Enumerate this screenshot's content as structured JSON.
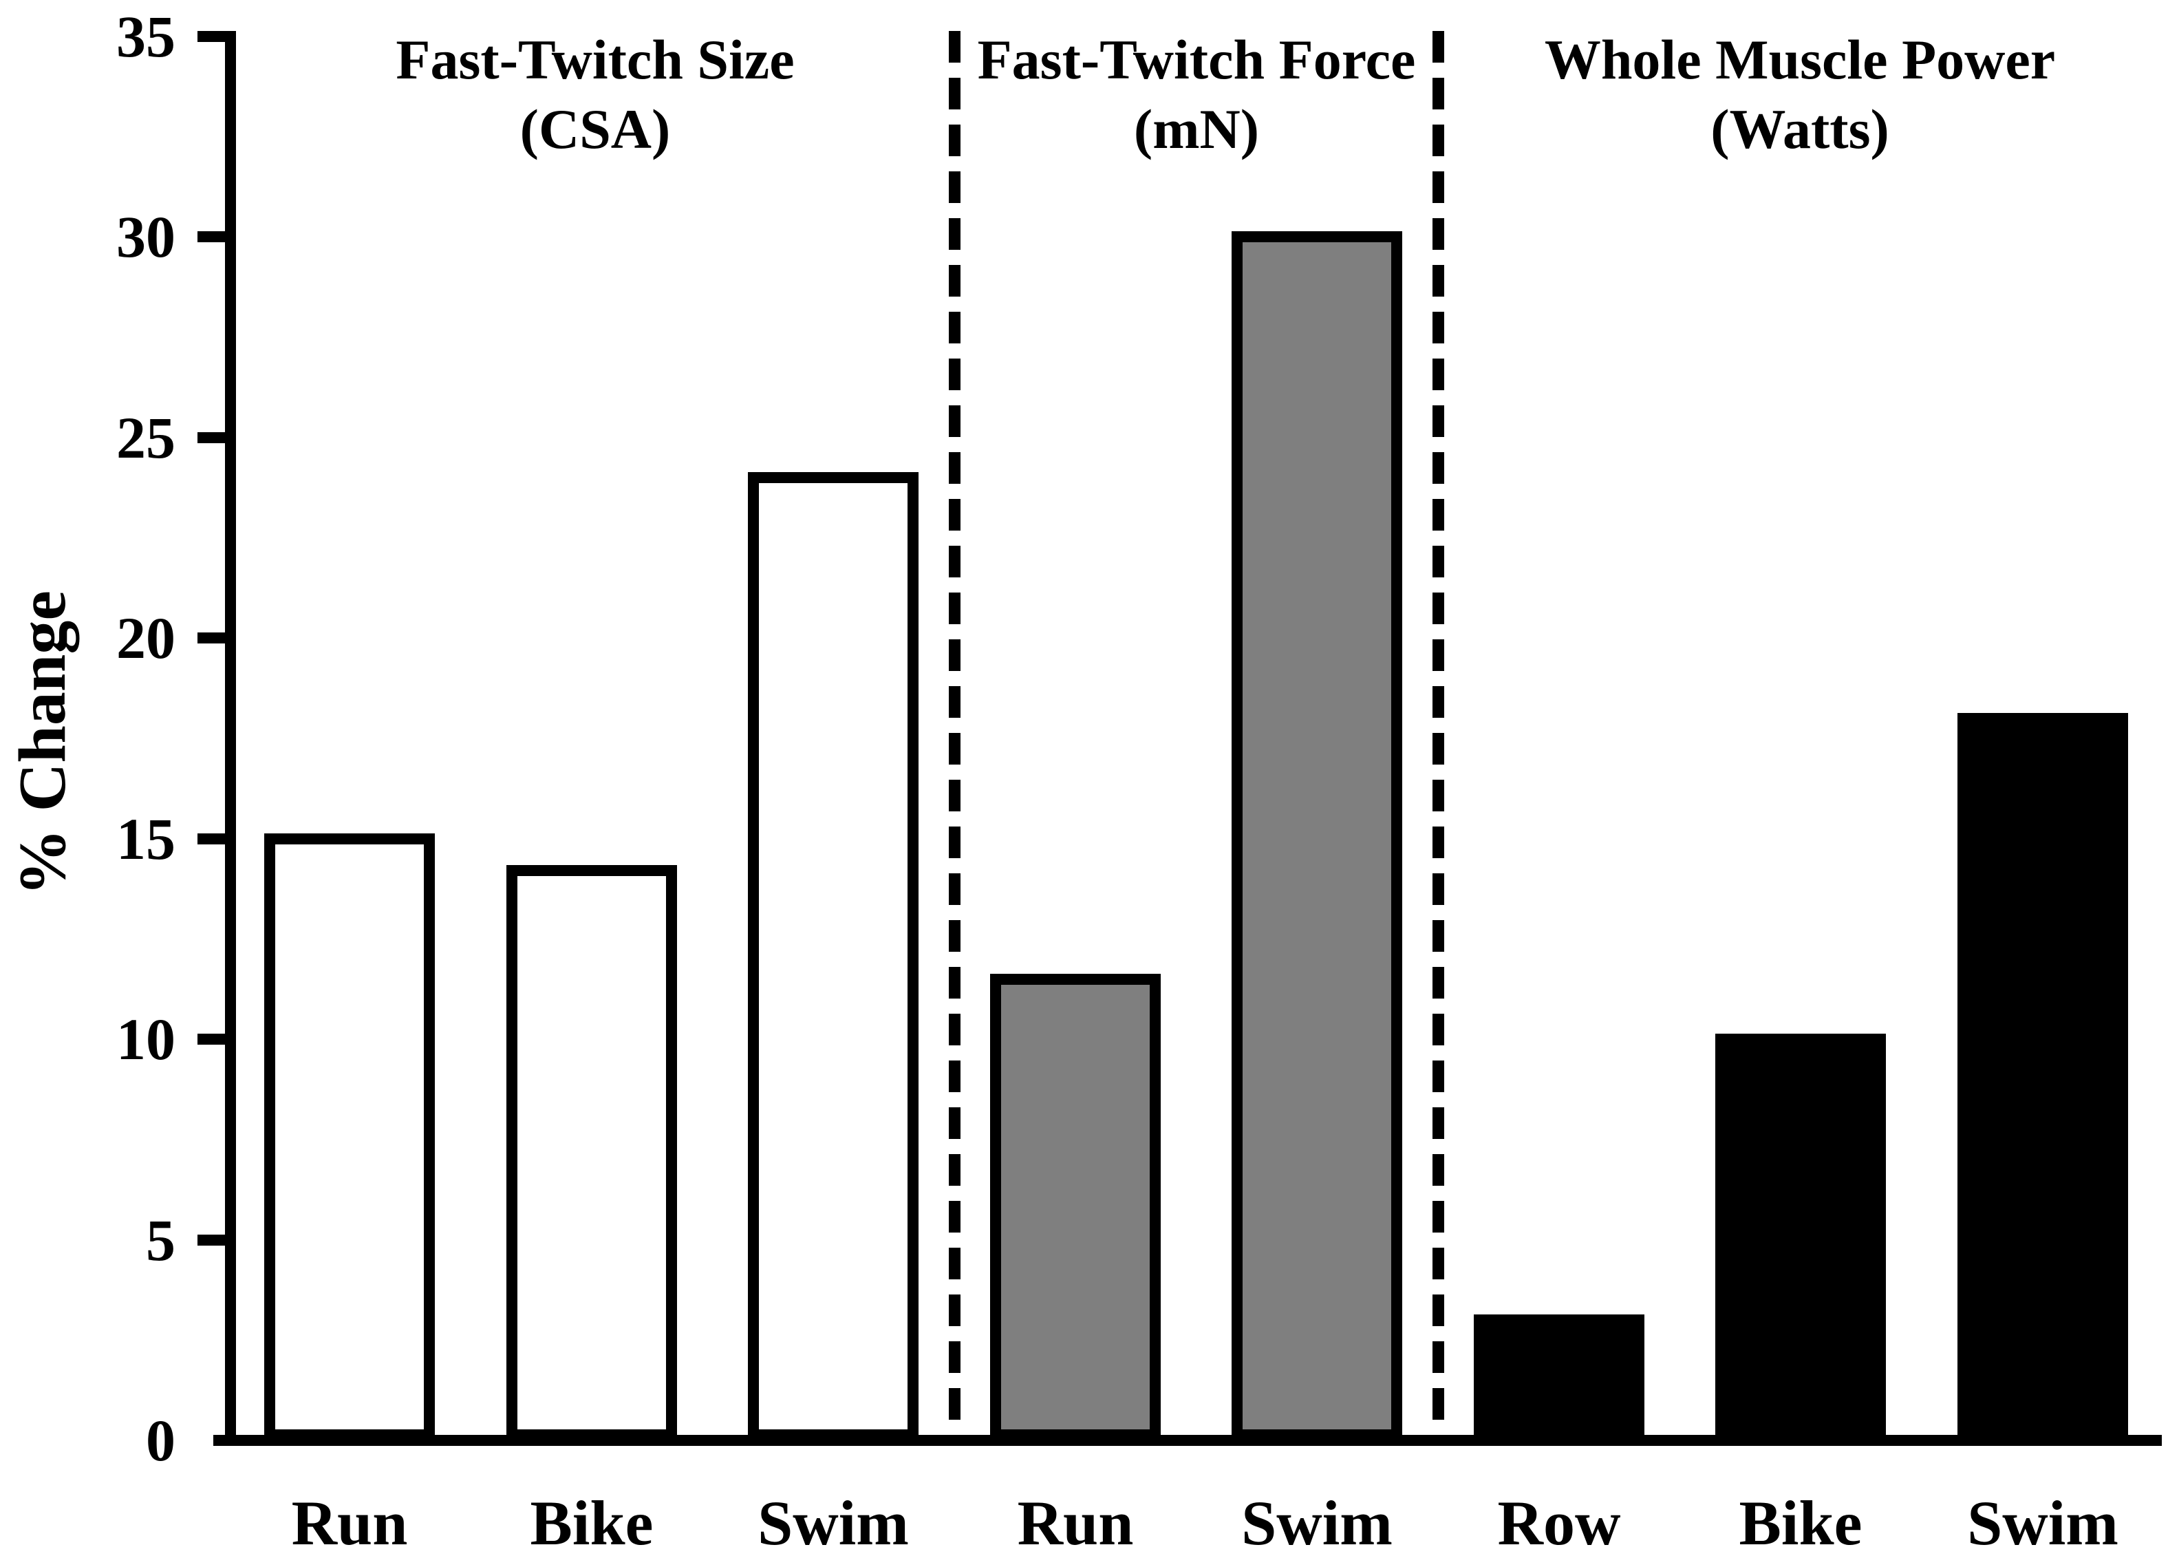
{
  "chart_data": {
    "type": "bar",
    "title": "",
    "xlabel": "",
    "ylabel": "% Change",
    "ylim": [
      0,
      35
    ],
    "ytick_interval": 5,
    "yticks": [
      "0",
      "5",
      "10",
      "15",
      "20",
      "25",
      "30",
      "35"
    ],
    "grid": false,
    "legend": "none",
    "separator_style": "dashed-vertical-lines",
    "background_color": "#ffffff",
    "axis_color": "#000000",
    "groups": [
      {
        "title_line1": "Fast-Twitch Size",
        "title_line2": "(CSA)",
        "bar_fill": "#ffffff",
        "bar_border": "#000000",
        "categories": [
          "Run",
          "Bike",
          "Swim"
        ],
        "values": [
          15,
          14.2,
          24
        ]
      },
      {
        "title_line1": "Fast-Twitch Force",
        "title_line2": "(mN)",
        "bar_fill": "#7f7f7f",
        "bar_border": "#000000",
        "categories": [
          "Run",
          "Swim"
        ],
        "values": [
          11.5,
          30
        ]
      },
      {
        "title_line1": "Whole Muscle Power",
        "title_line2": "(Watts)",
        "bar_fill": "#000000",
        "bar_border": "#000000",
        "categories": [
          "Row",
          "Bike",
          "Swim"
        ],
        "values": [
          3,
          10,
          18
        ]
      }
    ]
  }
}
